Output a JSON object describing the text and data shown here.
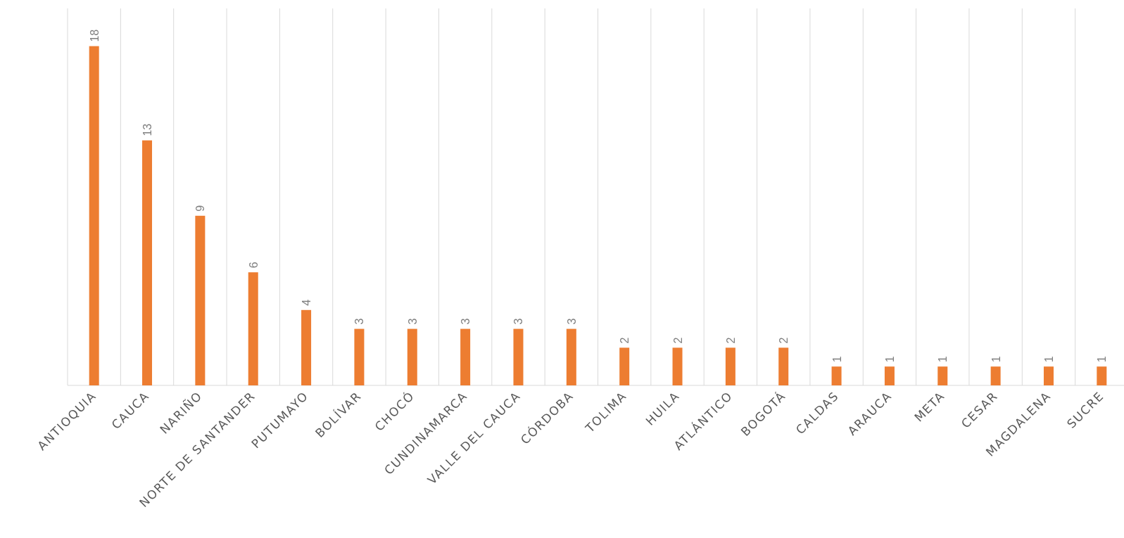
{
  "chart_data": {
    "type": "bar",
    "categories": [
      "ANTIOQUIA",
      "CAUCA",
      "NARIÑO",
      "NORTE DE SANTANDER",
      "PUTUMAYO",
      "BOLÍVAR",
      "CHOCÓ",
      "CUNDINAMARCA",
      "VALLE DEL CAUCA",
      "CÓRDOBA",
      "TOLIMA",
      "HUILA",
      "ATLÁNTICO",
      "BOGOTÁ",
      "CALDAS",
      "ARAUCA",
      "META",
      "CESAR",
      "MAGDALENA",
      "SUCRE"
    ],
    "values": [
      18,
      13,
      9,
      6,
      4,
      3,
      3,
      3,
      3,
      3,
      2,
      2,
      2,
      2,
      1,
      1,
      1,
      1,
      1,
      1
    ],
    "color": "#ed7d31",
    "ylim": [
      0,
      20
    ],
    "data_labels": true,
    "grid": "x",
    "tick_labels": "x"
  }
}
